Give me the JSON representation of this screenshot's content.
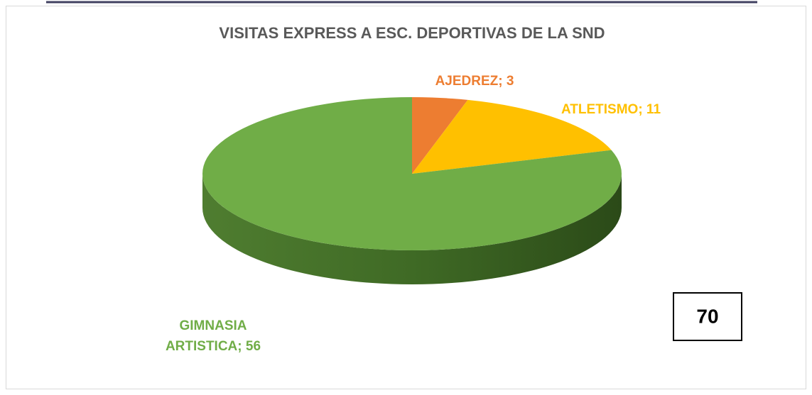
{
  "chart_data": {
    "type": "pie",
    "title": "VISITAS EXPRESS A ESC. DEPORTIVAS DE LA SND",
    "categories": [
      "AJEDREZ",
      "ATLETISMO",
      "GIMNASIA ARTISTICA"
    ],
    "values": [
      3,
      11,
      56
    ],
    "value_labels": [
      "AJEDREZ; 3",
      "ATLETISMO; 11",
      "GIMNASIA ARTISTICA; 56"
    ],
    "colors": [
      "#ED7D31",
      "#FFC000",
      "#70AD47"
    ],
    "total": 70
  }
}
